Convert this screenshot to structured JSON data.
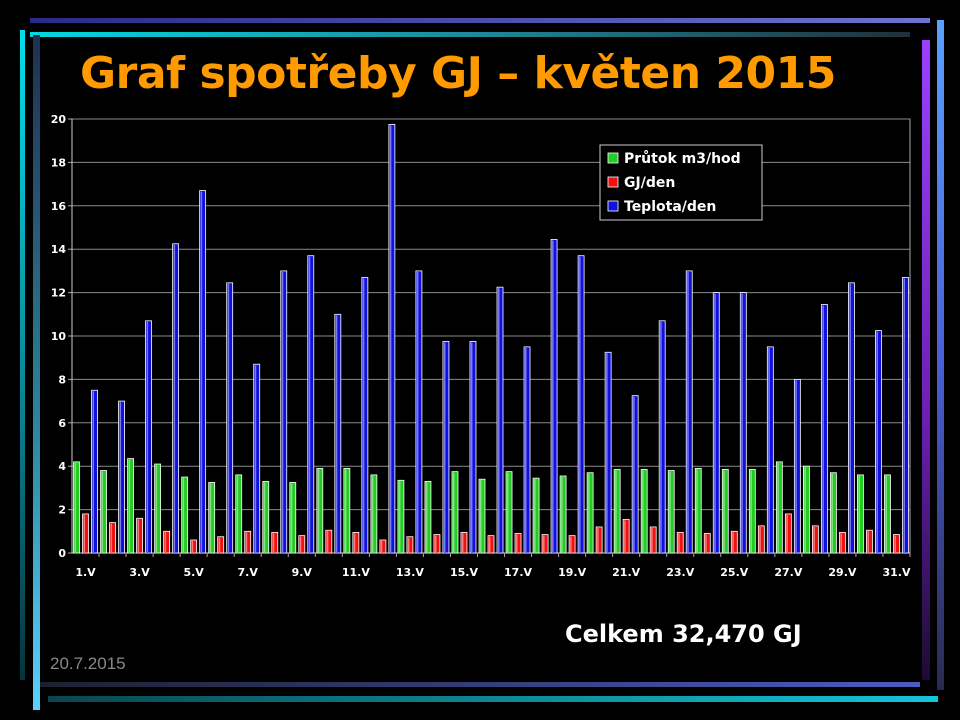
{
  "slide": {
    "title": "Graf spotřeby GJ – květen 2015",
    "total": "Celkem 32,470 GJ",
    "date": "20.7.2015"
  },
  "colors": {
    "background": "#000000",
    "title": "#ff9a00",
    "series": [
      "#22cc22",
      "#ee1111",
      "#1111dd"
    ]
  },
  "chart_data": {
    "type": "bar",
    "title": "",
    "xlabel": "",
    "ylabel": "",
    "ylim": [
      0,
      20
    ],
    "yticks": [
      0,
      2,
      4,
      6,
      8,
      10,
      12,
      14,
      16,
      18,
      20
    ],
    "grid": true,
    "legend_position": "top-right",
    "categories": [
      "1.V",
      "2.V",
      "3.V",
      "4.V",
      "5.V",
      "6.V",
      "7.V",
      "8.V",
      "9.V",
      "10.V",
      "11.V",
      "12.V",
      "13.V",
      "14.V",
      "15.V",
      "16.V",
      "17.V",
      "18.V",
      "19.V",
      "20.V",
      "21.V",
      "22.V",
      "23.V",
      "24.V",
      "25.V",
      "26.V",
      "27.V",
      "28.V",
      "29.V",
      "30.V",
      "31.V"
    ],
    "tick_labels": [
      "1.V",
      "3.V",
      "5.V",
      "7.V",
      "9.V",
      "11.V",
      "13.V",
      "15.V",
      "17.V",
      "19.V",
      "21.V",
      "23.V",
      "25.V",
      "27.V",
      "29.V",
      "31.V"
    ],
    "series": [
      {
        "name": "Průtok m3/hod",
        "values": [
          4.2,
          3.8,
          4.35,
          4.1,
          3.5,
          3.25,
          3.6,
          3.3,
          3.25,
          3.9,
          3.9,
          3.6,
          3.35,
          3.3,
          3.75,
          3.4,
          3.75,
          3.45,
          3.55,
          3.7,
          3.85,
          3.85,
          3.8,
          3.9,
          3.85,
          3.85,
          4.2,
          4.0,
          3.7,
          3.6,
          3.6
        ]
      },
      {
        "name": "GJ/den",
        "values": [
          1.8,
          1.4,
          1.6,
          1.0,
          0.6,
          0.75,
          1.0,
          0.95,
          0.8,
          1.05,
          0.95,
          0.6,
          0.75,
          0.85,
          0.95,
          0.8,
          0.9,
          0.85,
          0.8,
          1.2,
          1.55,
          1.2,
          0.95,
          0.9,
          1.0,
          1.25,
          1.8,
          1.25,
          0.95,
          1.05,
          0.85
        ]
      },
      {
        "name": "Teplota/den",
        "values": [
          7.5,
          7.0,
          10.7,
          14.25,
          16.7,
          12.45,
          8.7,
          13.0,
          13.7,
          11.0,
          12.7,
          19.75,
          13.0,
          9.75,
          9.75,
          12.25,
          9.5,
          14.45,
          13.7,
          9.25,
          7.25,
          10.7,
          13.0,
          12.0,
          12.0,
          9.5,
          8.0,
          11.45,
          12.45,
          10.25,
          12.7
        ]
      }
    ]
  }
}
